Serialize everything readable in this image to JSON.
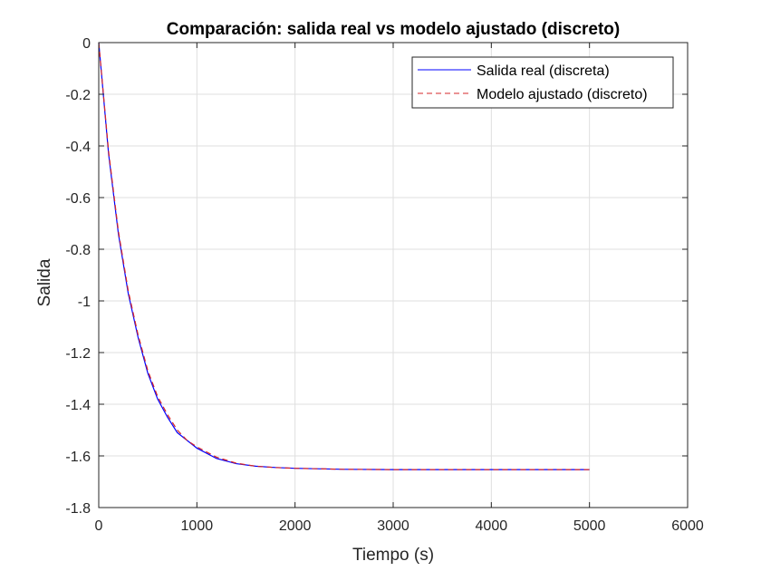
{
  "chart_data": {
    "type": "line",
    "title": "Comparación: salida real vs modelo ajustado (discreto)",
    "xlabel": "Tiempo (s)",
    "ylabel": "Salida",
    "xlim": [
      0,
      6000
    ],
    "ylim": [
      -1.8,
      0
    ],
    "xticks": [
      0,
      1000,
      2000,
      3000,
      4000,
      5000,
      6000
    ],
    "xtick_labels": [
      "0",
      "1000",
      "2000",
      "3000",
      "4000",
      "5000",
      "6000"
    ],
    "yticks": [
      0,
      -0.2,
      -0.4,
      -0.6,
      -0.8,
      -1,
      -1.2,
      -1.4,
      -1.6,
      -1.8
    ],
    "ytick_labels": [
      "0",
      "-0.2",
      "-0.4",
      "-0.6",
      "-0.8",
      "-1",
      "-1.2",
      "-1.4",
      "-1.6",
      "-1.8"
    ],
    "grid": true,
    "legend_position": "top-right",
    "series": [
      {
        "name": "Salida real (discreta)",
        "color": "#0000ff",
        "style": "solid",
        "x": [
          0,
          100,
          200,
          300,
          400,
          500,
          600,
          700,
          800,
          900,
          1000,
          1200,
          1400,
          1600,
          1800,
          2000,
          2500,
          3000,
          3500,
          4000,
          4500,
          5000
        ],
        "y": [
          0,
          -0.43,
          -0.74,
          -0.97,
          -1.14,
          -1.28,
          -1.38,
          -1.45,
          -1.51,
          -1.54,
          -1.57,
          -1.61,
          -1.63,
          -1.64,
          -1.645,
          -1.648,
          -1.652,
          -1.653,
          -1.653,
          -1.653,
          -1.653,
          -1.653
        ]
      },
      {
        "name": "Modelo ajustado (discreto)",
        "color": "#d62728",
        "style": "dashed",
        "x": [
          0,
          100,
          200,
          300,
          400,
          500,
          600,
          700,
          800,
          900,
          1000,
          1200,
          1400,
          1600,
          1800,
          2000,
          2500,
          3000,
          3500,
          4000,
          4500,
          5000
        ],
        "y": [
          0,
          -0.42,
          -0.73,
          -0.96,
          -1.13,
          -1.27,
          -1.37,
          -1.44,
          -1.5,
          -1.54,
          -1.565,
          -1.605,
          -1.628,
          -1.64,
          -1.645,
          -1.648,
          -1.652,
          -1.653,
          -1.653,
          -1.653,
          -1.653,
          -1.653
        ]
      }
    ]
  },
  "colors": {
    "axis": "#262626",
    "grid": "#dfdfdf",
    "background": "#ffffff"
  }
}
